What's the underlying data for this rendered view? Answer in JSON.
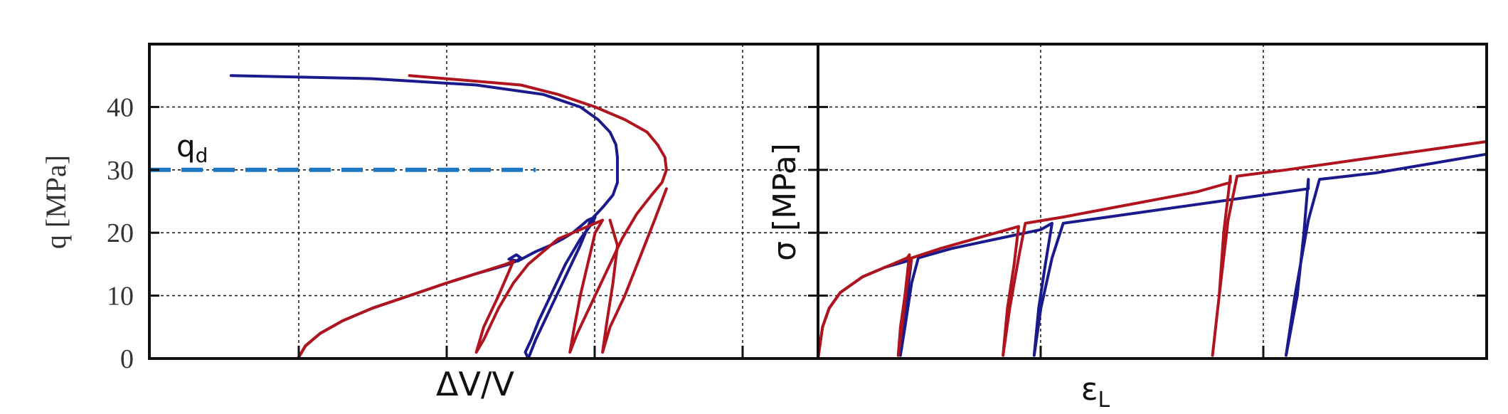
{
  "chart_data": [
    {
      "type": "line",
      "panel": "left",
      "xlabel": "ΔV/V",
      "ylabel": "q [MPa]",
      "ylim": [
        0,
        50
      ],
      "xlim": [
        0,
        4.5
      ],
      "yticks": [
        "0",
        "10",
        "20",
        "30",
        "40"
      ],
      "grid": true,
      "colors": {
        "blue": "#1a1a8c",
        "red": "#b0141e",
        "threshold": "#1f77c4"
      },
      "threshold": {
        "label": "qd",
        "label_main": "q",
        "label_sub": "d",
        "y": 30,
        "x_range": [
          0,
          2.6
        ]
      },
      "series": [
        {
          "color": "blue",
          "points": [
            [
              1.0,
              0
            ],
            [
              1.05,
              2
            ],
            [
              1.15,
              4
            ],
            [
              1.3,
              6
            ],
            [
              1.5,
              8
            ],
            [
              1.75,
              10
            ],
            [
              2.0,
              12
            ],
            [
              2.2,
              13.5
            ],
            [
              2.35,
              14.5
            ],
            [
              2.42,
              15
            ],
            [
              2.47,
              15.5
            ],
            [
              2.5,
              16
            ],
            [
              2.47,
              16.5
            ],
            [
              2.42,
              15.8
            ],
            [
              2.48,
              15.5
            ],
            [
              2.6,
              17
            ],
            [
              2.7,
              18
            ],
            [
              2.78,
              19
            ],
            [
              2.85,
              20
            ],
            [
              2.9,
              21
            ],
            [
              2.95,
              22
            ],
            [
              3.0,
              22.5
            ],
            [
              2.98,
              21.5
            ],
            [
              2.9,
              19
            ],
            [
              2.8,
              15
            ],
            [
              2.7,
              10
            ],
            [
              2.62,
              6
            ],
            [
              2.57,
              3
            ],
            [
              2.53,
              1
            ],
            [
              2.55,
              0
            ],
            [
              2.6,
              3
            ],
            [
              2.7,
              8
            ],
            [
              2.8,
              13
            ],
            [
              2.9,
              18
            ],
            [
              2.97,
              22
            ],
            [
              3.05,
              24
            ],
            [
              3.12,
              26
            ],
            [
              3.15,
              28
            ],
            [
              3.15,
              30
            ],
            [
              3.15,
              32
            ],
            [
              3.14,
              34
            ],
            [
              3.1,
              36
            ],
            [
              3.02,
              38
            ],
            [
              2.9,
              40
            ],
            [
              2.65,
              42
            ],
            [
              2.2,
              43.5
            ],
            [
              1.5,
              44.5
            ],
            [
              0.55,
              45
            ]
          ]
        },
        {
          "color": "red",
          "points": [
            [
              1.0,
              0
            ],
            [
              1.05,
              2
            ],
            [
              1.15,
              4
            ],
            [
              1.3,
              6
            ],
            [
              1.5,
              8
            ],
            [
              1.75,
              10
            ],
            [
              2.0,
              12
            ],
            [
              2.2,
              13.5
            ],
            [
              2.4,
              15
            ],
            [
              2.45,
              15.5
            ],
            [
              2.35,
              10
            ],
            [
              2.25,
              5
            ],
            [
              2.2,
              1
            ],
            [
              2.25,
              3
            ],
            [
              2.35,
              8
            ],
            [
              2.45,
              12
            ],
            [
              2.55,
              15
            ],
            [
              2.65,
              17
            ],
            [
              2.75,
              19
            ],
            [
              2.85,
              20
            ],
            [
              2.95,
              21
            ],
            [
              3.05,
              22
            ],
            [
              3.0,
              20
            ],
            [
              2.95,
              15
            ],
            [
              2.9,
              10
            ],
            [
              2.86,
              5
            ],
            [
              2.83,
              1
            ],
            [
              2.88,
              4
            ],
            [
              2.98,
              9
            ],
            [
              3.08,
              14
            ],
            [
              3.18,
              19
            ],
            [
              3.28,
              23
            ],
            [
              3.38,
              26
            ],
            [
              3.45,
              28
            ],
            [
              3.48,
              30
            ],
            [
              3.47,
              32
            ],
            [
              3.42,
              34
            ],
            [
              3.35,
              36
            ],
            [
              3.2,
              38
            ],
            [
              3.0,
              40
            ],
            [
              2.75,
              42
            ],
            [
              2.5,
              43.5
            ],
            [
              1.75,
              45
            ]
          ]
        },
        {
          "color": "red",
          "points": [
            [
              3.1,
              22
            ],
            [
              3.15,
              18
            ],
            [
              3.12,
              12
            ],
            [
              3.08,
              6
            ],
            [
              3.05,
              1
            ],
            [
              3.1,
              5
            ],
            [
              3.2,
              10
            ],
            [
              3.3,
              16
            ],
            [
              3.4,
              22
            ],
            [
              3.48,
              27
            ]
          ]
        }
      ]
    },
    {
      "type": "line",
      "panel": "right",
      "xlabel": "εL",
      "xlabel_main": "ε",
      "xlabel_sub": "L",
      "ylabel": "σ [MPa]",
      "ylim": [
        0,
        50
      ],
      "xlim": [
        0,
        3.0
      ],
      "grid": true,
      "colors": {
        "blue": "#1a1a8c",
        "red": "#b0141e"
      },
      "series": [
        {
          "color": "blue",
          "points": [
            [
              0,
              0
            ],
            [
              0.02,
              5
            ],
            [
              0.05,
              8
            ],
            [
              0.1,
              10.5
            ],
            [
              0.2,
              13
            ],
            [
              0.3,
              14.5
            ],
            [
              0.4,
              15.5
            ],
            [
              0.42,
              16
            ],
            [
              0.4,
              10
            ],
            [
              0.38,
              5
            ],
            [
              0.37,
              0.5
            ],
            [
              0.39,
              5
            ],
            [
              0.42,
              12
            ],
            [
              0.45,
              16
            ],
            [
              0.6,
              17.5
            ],
            [
              0.8,
              19
            ],
            [
              1.0,
              20.5
            ],
            [
              1.05,
              21.5
            ],
            [
              1.02,
              15
            ],
            [
              0.99,
              8
            ],
            [
              0.97,
              0.5
            ],
            [
              1.0,
              8
            ],
            [
              1.05,
              16
            ],
            [
              1.1,
              21.5
            ],
            [
              1.3,
              22.5
            ],
            [
              1.6,
              24
            ],
            [
              1.9,
              25.5
            ],
            [
              2.2,
              27
            ],
            [
              2.2,
              28.5
            ],
            [
              2.18,
              20
            ],
            [
              2.15,
              10
            ],
            [
              2.1,
              0.5
            ],
            [
              2.14,
              10
            ],
            [
              2.2,
              22
            ],
            [
              2.25,
              28.5
            ],
            [
              2.5,
              29.5
            ],
            [
              2.75,
              31
            ],
            [
              3.0,
              32.5
            ]
          ]
        },
        {
          "color": "red",
          "points": [
            [
              0,
              0
            ],
            [
              0.02,
              5
            ],
            [
              0.05,
              8
            ],
            [
              0.1,
              10.5
            ],
            [
              0.2,
              13
            ],
            [
              0.3,
              14.5
            ],
            [
              0.4,
              16
            ],
            [
              0.41,
              16.5
            ],
            [
              0.39,
              10
            ],
            [
              0.37,
              5
            ],
            [
              0.36,
              0.5
            ],
            [
              0.38,
              6
            ],
            [
              0.4,
              12
            ],
            [
              0.42,
              16
            ],
            [
              0.55,
              17.5
            ],
            [
              0.75,
              19.5
            ],
            [
              0.9,
              21
            ],
            [
              0.88,
              15
            ],
            [
              0.85,
              8
            ],
            [
              0.83,
              0.5
            ],
            [
              0.86,
              8
            ],
            [
              0.9,
              16
            ],
            [
              0.93,
              21.5
            ],
            [
              1.1,
              22.5
            ],
            [
              1.4,
              24.5
            ],
            [
              1.7,
              26.5
            ],
            [
              1.85,
              28
            ],
            [
              1.85,
              29
            ],
            [
              1.82,
              20
            ],
            [
              1.8,
              10
            ],
            [
              1.77,
              0.5
            ],
            [
              1.8,
              10
            ],
            [
              1.84,
              22
            ],
            [
              1.88,
              29
            ],
            [
              2.1,
              30
            ],
            [
              2.4,
              31.5
            ],
            [
              2.7,
              33
            ],
            [
              3.0,
              34.5
            ]
          ]
        }
      ]
    }
  ]
}
